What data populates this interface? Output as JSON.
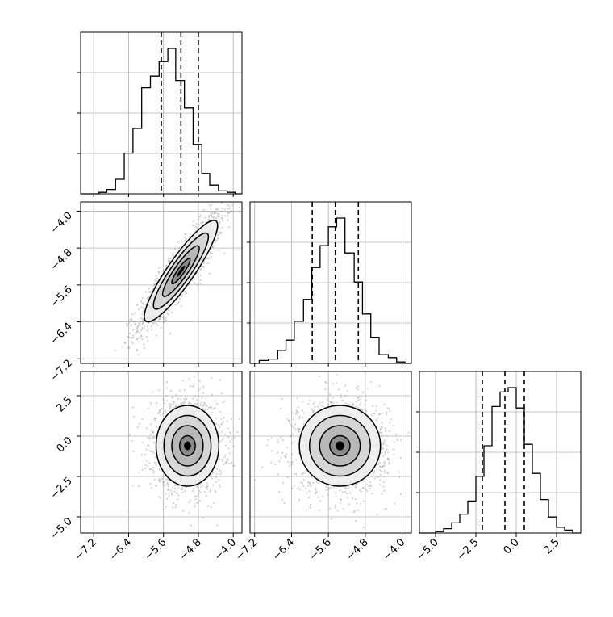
{
  "chart_data": {
    "type": "corner",
    "title": "",
    "grid": true,
    "tick_labels": {
      "p0": [
        "−7.2",
        "−6.4",
        "−5.6",
        "−4.8",
        "−4.0"
      ],
      "p1": [
        "−4.0",
        "−4.8",
        "−5.6",
        "−6.4",
        "−7.2"
      ],
      "p1_x": [
        "−7.2",
        "−6.4",
        "−5.6",
        "−4.8",
        "−4.0"
      ],
      "p2": [
        "2.5",
        "0.0",
        "−2.5",
        "−5.0"
      ],
      "p2_x": [
        "−5.0",
        "−2.5",
        "0.0",
        "2.5"
      ]
    },
    "parameters": [
      {
        "range": [
          -7.5,
          -3.8
        ],
        "ticks": [
          -7.2,
          -6.4,
          -5.6,
          -4.8,
          -4.0
        ],
        "quantiles": [
          -5.65,
          -5.2,
          -4.8
        ],
        "hist_edges": [
          -7.5,
          -7.28,
          -7.08,
          -6.9,
          -6.7,
          -6.5,
          -6.3,
          -6.1,
          -5.9,
          -5.7,
          -5.5,
          -5.32,
          -5.12,
          -4.92,
          -4.72,
          -4.54,
          -4.34,
          -4.14,
          -3.96,
          -3.8
        ],
        "hist_values": [
          0,
          0.0,
          0.01,
          0.03,
          0.1,
          0.28,
          0.45,
          0.73,
          0.81,
          0.91,
          1.0,
          0.78,
          0.59,
          0.34,
          0.14,
          0.06,
          0.02,
          0.01,
          0.0
        ]
      },
      {
        "range": [
          -7.3,
          -3.8
        ],
        "ticks": [
          -7.2,
          -6.4,
          -5.6,
          -4.8,
          -4.0
        ],
        "quantiles": [
          -5.95,
          -5.45,
          -4.95
        ],
        "hist_edges": [
          -7.3,
          -7.1,
          -6.9,
          -6.7,
          -6.52,
          -6.34,
          -6.14,
          -5.96,
          -5.78,
          -5.6,
          -5.42,
          -5.24,
          -5.04,
          -4.86,
          -4.68,
          -4.5,
          -4.3,
          -4.12,
          -3.94,
          -3.8
        ],
        "hist_values": [
          0,
          0.02,
          0.03,
          0.09,
          0.16,
          0.29,
          0.44,
          0.66,
          0.81,
          0.94,
          1.0,
          0.76,
          0.56,
          0.34,
          0.18,
          0.06,
          0.04,
          0.01,
          0.0
        ]
      },
      {
        "range": [
          -6.0,
          4.0
        ],
        "ticks": [
          -5.0,
          -2.5,
          0.0,
          2.5
        ],
        "quantiles": [
          -2.1,
          -0.7,
          0.5
        ],
        "hist_edges": [
          -6.0,
          -5.5,
          -5.0,
          -4.5,
          -4.0,
          -3.5,
          -3.0,
          -2.5,
          -2.0,
          -1.5,
          -1.0,
          -0.5,
          0.0,
          0.5,
          1.0,
          1.5,
          2.0,
          2.5,
          3.0,
          3.5,
          4.0
        ],
        "hist_values": [
          0,
          0.0,
          0.01,
          0.03,
          0.07,
          0.13,
          0.22,
          0.39,
          0.6,
          0.87,
          0.97,
          1.0,
          0.86,
          0.61,
          0.41,
          0.23,
          0.11,
          0.04,
          0.02,
          0.0
        ]
      }
    ],
    "pairs": [
      {
        "x_param": 0,
        "y_param": 1,
        "mean": [
          -5.2,
          -5.3
        ],
        "sigma": [
          0.42,
          0.55
        ],
        "corr": 0.9,
        "contour_levels_sigma": [
          0.5,
          1.0,
          1.5,
          2.0
        ],
        "n_points": 1600
      },
      {
        "x_param": 0,
        "y_param": 2,
        "mean": [
          -5.05,
          -0.6
        ],
        "sigma": [
          0.36,
          1.25
        ],
        "corr": 0.0,
        "contour_levels_sigma": [
          0.5,
          1.0,
          1.5,
          2.0
        ],
        "n_points": 1600
      },
      {
        "x_param": 1,
        "y_param": 2,
        "mean": [
          -5.35,
          -0.6
        ],
        "sigma": [
          0.44,
          1.25
        ],
        "corr": 0.0,
        "contour_levels_sigma": [
          0.5,
          1.0,
          1.5,
          2.0
        ],
        "n_points": 1600
      }
    ]
  }
}
